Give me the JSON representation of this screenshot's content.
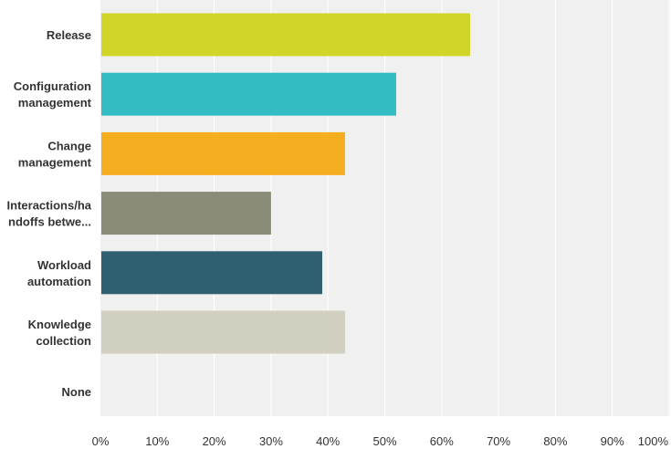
{
  "chart_data": {
    "type": "bar",
    "orientation": "horizontal",
    "categories": [
      [
        "Release"
      ],
      [
        "Configuration",
        "management"
      ],
      [
        "Change",
        "management"
      ],
      [
        "Interactions/ha",
        "ndoffs betwe..."
      ],
      [
        "Workload",
        "automation"
      ],
      [
        "Knowledge",
        "collection"
      ],
      [
        "None"
      ]
    ],
    "values": [
      65,
      52,
      43,
      30,
      39,
      43,
      0
    ],
    "colors": [
      "#d0d528",
      "#33bcc1",
      "#f6ae21",
      "#8a8b79",
      "#2e6070",
      "#d0cfc0",
      "#cccccc"
    ],
    "xlim": [
      0,
      100
    ],
    "ticks": [
      "0%",
      "10%",
      "20%",
      "30%",
      "40%",
      "50%",
      "60%",
      "70%",
      "80%",
      "90%",
      "100%"
    ],
    "grid": true,
    "background": "#f0f0f0",
    "grid_color": "#ffffff"
  }
}
